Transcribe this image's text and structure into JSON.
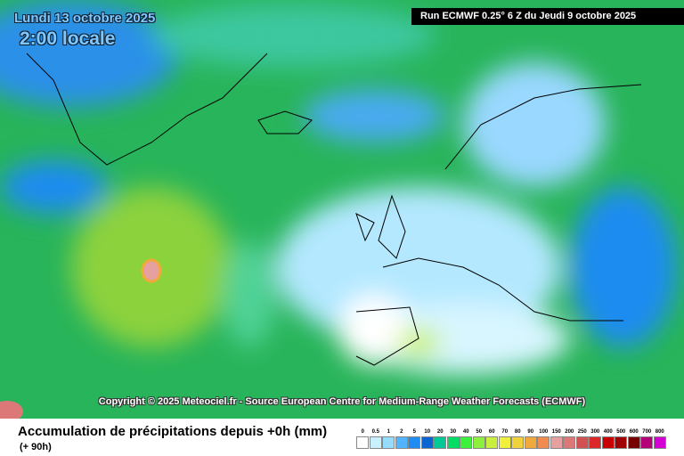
{
  "header": {
    "date": "Lundi 13 octobre 2025",
    "time": "2:00 locale",
    "run": "Run ECMWF 0.25° 6 Z du Jeudi 9 octobre 2025"
  },
  "copyright": "Copyright © 2025 Meteociel.fr - Source European Centre for Medium-Range Weather Forecasts (ECMWF)",
  "footer": {
    "title": "Accumulation de précipitations depuis +0h (mm)",
    "lead": "(+ 90h)"
  },
  "legend": [
    {
      "label": "0",
      "color": "#ffffff"
    },
    {
      "label": "0.5",
      "color": "#c8f0ff"
    },
    {
      "label": "1",
      "color": "#96dcff"
    },
    {
      "label": "2",
      "color": "#50b4ff"
    },
    {
      "label": "5",
      "color": "#1e8cf0"
    },
    {
      "label": "10",
      "color": "#0a64d2"
    },
    {
      "label": "20",
      "color": "#00c896"
    },
    {
      "label": "30",
      "color": "#00dc64"
    },
    {
      "label": "40",
      "color": "#3cf03c"
    },
    {
      "label": "50",
      "color": "#8cf03c"
    },
    {
      "label": "60",
      "color": "#c8f03c"
    },
    {
      "label": "70",
      "color": "#f0f03c"
    },
    {
      "label": "80",
      "color": "#f0d23c"
    },
    {
      "label": "90",
      "color": "#f0aa3c"
    },
    {
      "label": "100",
      "color": "#f08c50"
    },
    {
      "label": "150",
      "color": "#e6a0a0"
    },
    {
      "label": "200",
      "color": "#dc7878"
    },
    {
      "label": "250",
      "color": "#d25050"
    },
    {
      "label": "300",
      "color": "#dc2828"
    },
    {
      "label": "400",
      "color": "#c80000"
    },
    {
      "label": "500",
      "color": "#a00000"
    },
    {
      "label": "600",
      "color": "#780000"
    },
    {
      "label": "700",
      "color": "#b40078"
    },
    {
      "label": "800",
      "color": "#d200d2"
    }
  ]
}
